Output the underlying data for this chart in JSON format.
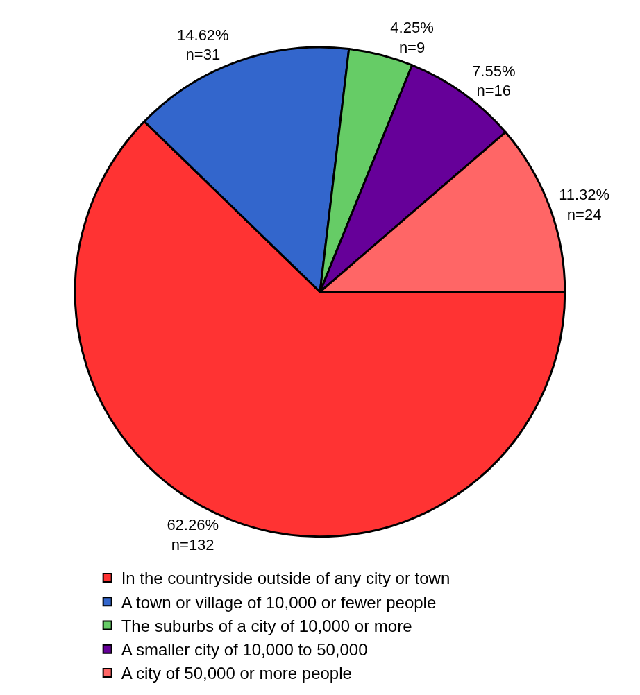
{
  "chart_data": {
    "type": "pie",
    "categories": [
      "In the countryside outside of any city or town",
      "A town or village of 10,000 or fewer people",
      "The suburbs of a city of 10,000 or more",
      "A smaller city of 10,000 to 50,000",
      "A city of 50,000 or more people"
    ],
    "values": [
      132,
      31,
      9,
      16,
      24
    ],
    "value_labels": [
      "62.26%\nn=132",
      "14.62%\nn=31",
      "4.25%\nn=9",
      "7.55%\nn=16",
      "11.32%\nn=24"
    ],
    "colors": [
      "#ff3333",
      "#3366cc",
      "#66cc66",
      "#660099",
      "#ff6666"
    ],
    "legend": "bottom"
  }
}
